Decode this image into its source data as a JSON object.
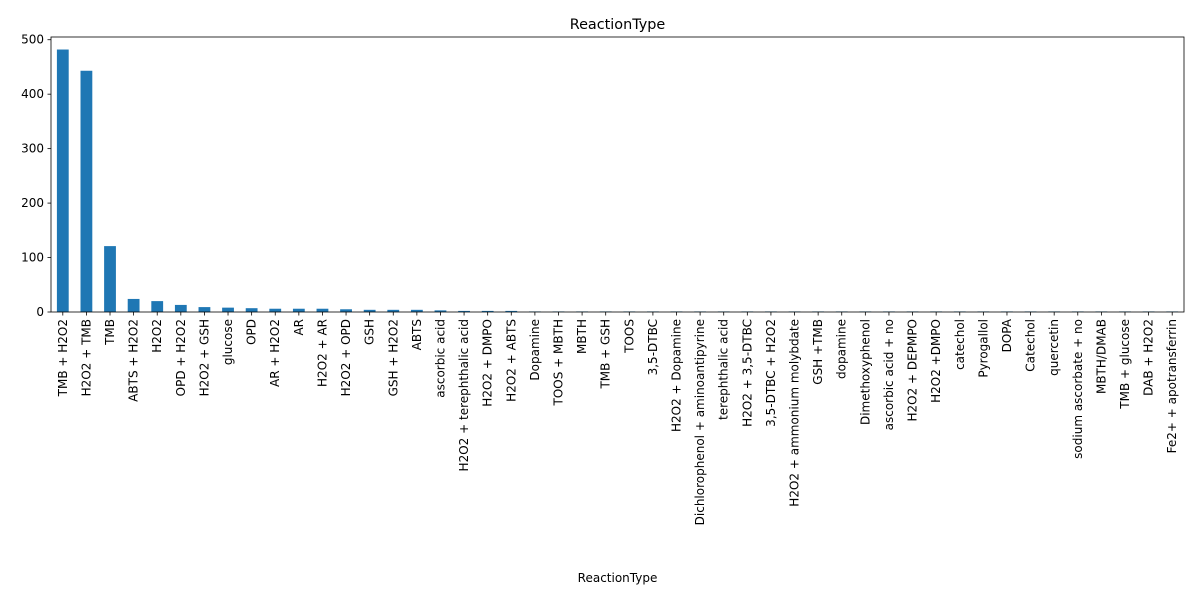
{
  "chart_data": {
    "type": "bar",
    "title": "ReactionType",
    "xlabel": "ReactionType",
    "ylabel": "",
    "ylim": [
      0,
      505
    ],
    "yticks": [
      0,
      100,
      200,
      300,
      400,
      500
    ],
    "grid": false,
    "legend": "none",
    "bar_color": "#1f77b4",
    "categories": [
      "TMB + H2O2",
      "H2O2 + TMB",
      "TMB",
      "ABTS + H2O2",
      "H2O2",
      "OPD + H2O2",
      "H2O2 + GSH",
      "glucose",
      "OPD",
      "AR + H2O2",
      "AR",
      "H2O2 + AR",
      "H2O2 + OPD",
      "GSH",
      "GSH + H2O2",
      "ABTS",
      "ascorbic acid",
      "H2O2 + terephthalic acid",
      "H2O2 + DMPO",
      "H2O2 + ABTS",
      "Dopamine",
      "TOOS + MBTH",
      "MBTH",
      "TMB + GSH",
      "TOOS",
      "3,5-DTBC",
      "H2O2 + Dopamine",
      "Dichlorophenol  + aminoantipyrine",
      "terephthalic acid",
      "H2O2 + 3,5-DTBC",
      "3,5-DTBC + H2O2",
      "H2O2 + ammonium molybdate",
      "GSH +TMB",
      "dopamine",
      "Dimethoxyphenol",
      "ascorbic acid + no",
      "H2O2 + DEPMPO",
      "H2O2 +DMPO",
      "catechol",
      "Pyrogallol",
      "DOPA",
      "Catechol",
      "quercetin",
      "sodium ascorbate + no",
      "MBTH/DMAB",
      "TMB + glucose",
      "DAB + H2O2",
      "Fe2+ + apotransferrin"
    ],
    "values": [
      482,
      443,
      121,
      24,
      20,
      13,
      9,
      8,
      7,
      6,
      6,
      6,
      5,
      4,
      4,
      4,
      3,
      2,
      2,
      2,
      1,
      1,
      1,
      1,
      1,
      1,
      1,
      1,
      1,
      1,
      1,
      1,
      1,
      1,
      1,
      1,
      1,
      1,
      1,
      1,
      1,
      1,
      1,
      1,
      1,
      1,
      1,
      1
    ]
  }
}
